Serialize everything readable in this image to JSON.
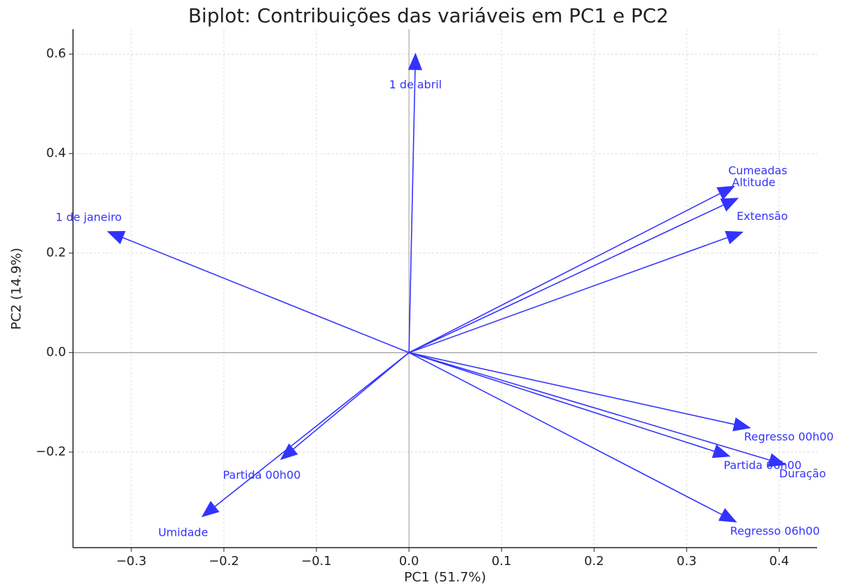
{
  "chart_data": {
    "type": "biplot",
    "title": "Biplot: Contribuições das variáveis em PC1 e PC2",
    "x_label": "PC1 (51.7%)",
    "y_label": "PC2 (14.9%)",
    "categories": [
      "1 de abril",
      "1 de janeiro",
      "Cumeadas",
      "Altitude",
      "Extensão",
      "Regresso 00h00",
      "Duração",
      "Partida 06h00",
      "Regresso 06h00",
      "Partida 00h00",
      "Umidade"
    ],
    "x": [
      0.007,
      -0.325,
      0.351,
      0.355,
      0.36,
      0.368,
      0.406,
      0.346,
      0.353,
      -0.138,
      -0.223
    ],
    "values": [
      0.6,
      0.243,
      0.334,
      0.31,
      0.242,
      -0.151,
      -0.225,
      -0.208,
      -0.34,
      -0.214,
      -0.329
    ],
    "color": "#3333ff",
    "xlim": [
      -0.363,
      0.441
    ],
    "ylim": [
      -0.392,
      0.65
    ],
    "xticks": [
      {
        "value": -0.3,
        "label": "−0.3"
      },
      {
        "value": -0.2,
        "label": "−0.2"
      },
      {
        "value": -0.1,
        "label": "−0.1"
      },
      {
        "value": 0,
        "label": "0.0"
      },
      0.1,
      0.2,
      0.3,
      0.4
    ],
    "yticks": [
      {
        "value": -0.2,
        "label": "−0.2"
      },
      {
        "value": 0,
        "label": "0.0"
      },
      0.2,
      0.4,
      0.6
    ],
    "grid": true,
    "zero_lines": true
  }
}
